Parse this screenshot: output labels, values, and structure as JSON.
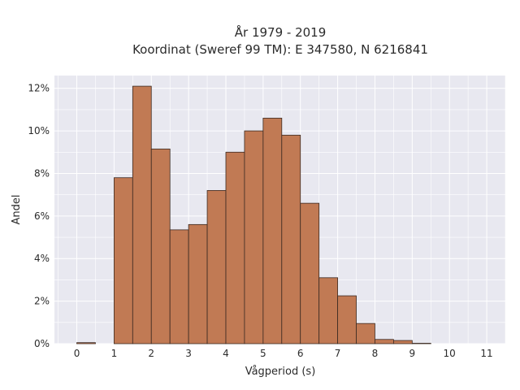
{
  "chart_data": {
    "type": "bar",
    "title": [
      "År 1979 - 2019",
      "Koordinat (Sweref 99 TM): E 347580, N 6216841"
    ],
    "xlabel": "Vågperiod (s)",
    "ylabel": "Andel",
    "bin_width": 0.5,
    "bins": [
      {
        "x": 0.0,
        "value": 0.05
      },
      {
        "x": 0.5,
        "value": 0.0
      },
      {
        "x": 1.0,
        "value": 7.8
      },
      {
        "x": 1.5,
        "value": 12.1
      },
      {
        "x": 2.0,
        "value": 9.15
      },
      {
        "x": 2.5,
        "value": 5.35
      },
      {
        "x": 3.0,
        "value": 5.6
      },
      {
        "x": 3.5,
        "value": 7.2
      },
      {
        "x": 4.0,
        "value": 9.0
      },
      {
        "x": 4.5,
        "value": 10.0
      },
      {
        "x": 5.0,
        "value": 10.6
      },
      {
        "x": 5.5,
        "value": 9.8
      },
      {
        "x": 6.0,
        "value": 6.6
      },
      {
        "x": 6.5,
        "value": 3.1
      },
      {
        "x": 7.0,
        "value": 2.25
      },
      {
        "x": 7.5,
        "value": 0.95
      },
      {
        "x": 8.0,
        "value": 0.2
      },
      {
        "x": 8.5,
        "value": 0.15
      },
      {
        "x": 9.0,
        "value": 0.02
      }
    ],
    "xticks": [
      0,
      1,
      2,
      3,
      4,
      5,
      6,
      7,
      8,
      9,
      10,
      11
    ],
    "yticks": [
      0,
      2,
      4,
      6,
      8,
      10,
      12
    ],
    "ytick_suffix": "%",
    "xlim": [
      -0.6,
      11.5
    ],
    "ylim": [
      0,
      12.6
    ],
    "grid": true,
    "colors": {
      "bar": "#c17a54",
      "bar_edge": "#3b2a22",
      "plot_bg": "#e8e8f0",
      "grid": "#ffffff"
    }
  }
}
